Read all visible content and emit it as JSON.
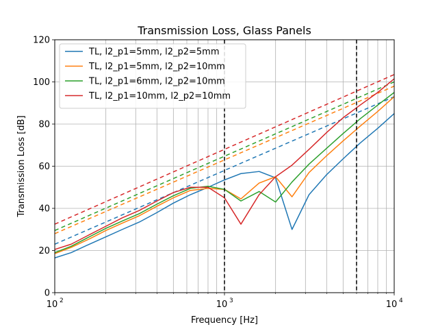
{
  "chart_data": {
    "type": "line",
    "title": "Transmission Loss, Glass Panels",
    "xlabel": "Frequency [Hz]",
    "ylabel": "Transmission Loss [dB]",
    "xscale": "log",
    "xlim": [
      100,
      10000
    ],
    "ylim": [
      0,
      120
    ],
    "yticks": [
      0,
      20,
      40,
      60,
      80,
      100,
      120
    ],
    "xticks": [
      100,
      1000,
      10000
    ],
    "xtick_labels": [
      {
        "base": "10",
        "exp": "2"
      },
      {
        "base": "10",
        "exp": "3"
      },
      {
        "base": "10",
        "exp": "4"
      }
    ],
    "grid": true,
    "legend_position": "top-left",
    "x": [
      100,
      125,
      160,
      200,
      250,
      315,
      400,
      500,
      630,
      800,
      1000,
      1250,
      1600,
      2000,
      2500,
      3150,
      4000,
      5000,
      6300,
      8000,
      10000
    ],
    "series": [
      {
        "name": "TL, l2_p1=5mm, l2_p2=5mm",
        "color": "#1f77b4",
        "values": [
          16.5,
          19,
          23,
          26.5,
          30,
          33.5,
          38,
          42.5,
          46.5,
          50,
          53.5,
          56.5,
          57.5,
          54.5,
          30,
          46.5,
          56,
          63.5,
          71,
          78,
          85
        ],
        "dashed_start": 23,
        "dashed_end": 93
      },
      {
        "name": "TL, l2_p1=5mm, l2_p2=10mm",
        "color": "#ff7f0e",
        "values": [
          18.5,
          21.5,
          25.5,
          29.5,
          33,
          36.5,
          41,
          45,
          48.5,
          49.5,
          49,
          44.5,
          52,
          55,
          45.5,
          57,
          65,
          72,
          79,
          86,
          93
        ],
        "dashed_start": 28,
        "dashed_end": 98
      },
      {
        "name": "TL, l2_p1=6mm, l2_p2=10mm",
        "color": "#2ca02c",
        "values": [
          19,
          22,
          26.5,
          30.5,
          34,
          37.5,
          42,
          46,
          49.5,
          50.5,
          49,
          43.5,
          48,
          43,
          52.5,
          61,
          68.5,
          75.5,
          82.5,
          89,
          95
        ],
        "dashed_start": 29.5,
        "dashed_end": 100
      },
      {
        "name": "TL, l2_p1=10mm, l2_p2=10mm",
        "color": "#d62728",
        "values": [
          20.5,
          23,
          27.5,
          31.5,
          35.5,
          39,
          43.5,
          47.5,
          50,
          50,
          45,
          32.5,
          46.5,
          55,
          60.5,
          68,
          76,
          83,
          89,
          95,
          101.5
        ],
        "dashed_start": 32.5,
        "dashed_end": 103.5
      }
    ],
    "vlines": [
      {
        "x": 1000,
        "style": "dashed",
        "color": "#000000"
      },
      {
        "x": 6000,
        "style": "dashed",
        "color": "#000000"
      }
    ]
  }
}
